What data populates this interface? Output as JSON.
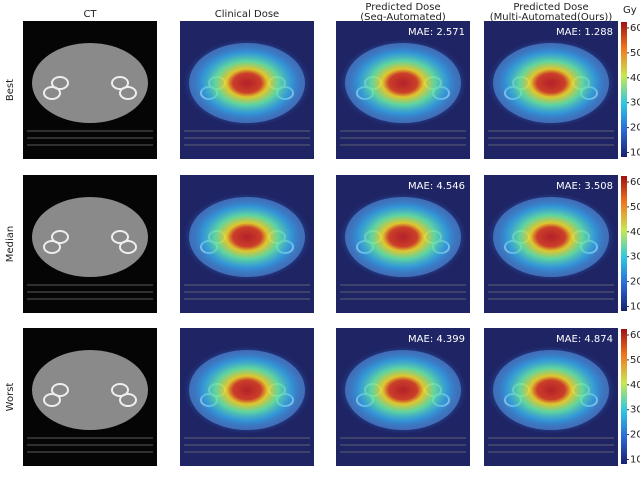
{
  "columns": [
    {
      "title": "CT"
    },
    {
      "title": "Clinical Dose"
    },
    {
      "title": "Predicted Dose",
      "subtitle": "(Seq-Automated)"
    },
    {
      "title": "Predicted Dose",
      "subtitle": "(Multi-Automated(Ours))"
    }
  ],
  "rows": [
    {
      "label": "Best",
      "mae": [
        "MAE: 2.571",
        "MAE: 1.288"
      ]
    },
    {
      "label": "Median",
      "mae": [
        "MAE: 4.546",
        "MAE: 3.508"
      ]
    },
    {
      "label": "Worst",
      "mae": [
        "MAE: 4.399",
        "MAE: 4.874"
      ]
    }
  ],
  "colorbar": {
    "unit": "Gy",
    "range": [
      9,
      62
    ],
    "ticks": [
      10,
      20,
      30,
      40,
      50,
      60
    ]
  }
}
